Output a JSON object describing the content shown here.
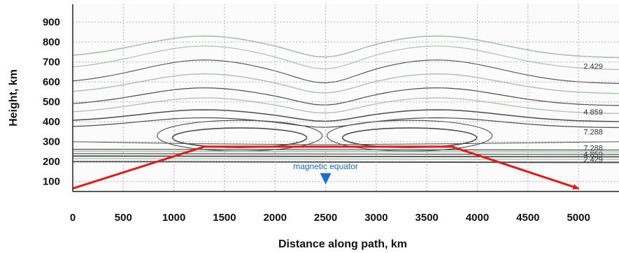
{
  "chart_data": {
    "type": "line",
    "title": "",
    "xlabel": "Distance along path, km",
    "ylabel": "Height, km",
    "xlim": [
      0,
      5400
    ],
    "ylim": [
      50,
      990
    ],
    "x_ticks": [
      0,
      500,
      1000,
      1500,
      2000,
      2500,
      3000,
      3500,
      4000,
      4500,
      5000
    ],
    "y_ticks": [
      100,
      200,
      300,
      400,
      500,
      600,
      700,
      800,
      900
    ],
    "grid": true,
    "series": [
      {
        "x": [
          0,
          1300,
          3750,
          5000
        ],
        "y": [
          65,
          275,
          275,
          65
        ],
        "color": "#e11b1b"
      }
    ],
    "contour_labels": [
      {
        "text": "2.429",
        "x": 5050,
        "y": 680
      },
      {
        "text": "4.859",
        "x": 5050,
        "y": 450
      },
      {
        "text": "7.288",
        "x": 5050,
        "y": 350
      },
      {
        "text": "7.288",
        "x": 5050,
        "y": 270
      },
      {
        "text": "4.859",
        "x": 5050,
        "y": 238
      },
      {
        "text": "2.429",
        "x": 5050,
        "y": 212
      }
    ],
    "annotations": [
      {
        "text": "magnetic equator",
        "x": 2500,
        "y": 135,
        "marker": "triangle-down",
        "color": "#1b6fc9"
      }
    ],
    "colors": {
      "path": "#e11b1b",
      "contour_dark": "#4d4d4d",
      "contour_light": "#a6c4a6",
      "grid": "#9a9a9a",
      "marker": "#1b6fc9"
    }
  }
}
